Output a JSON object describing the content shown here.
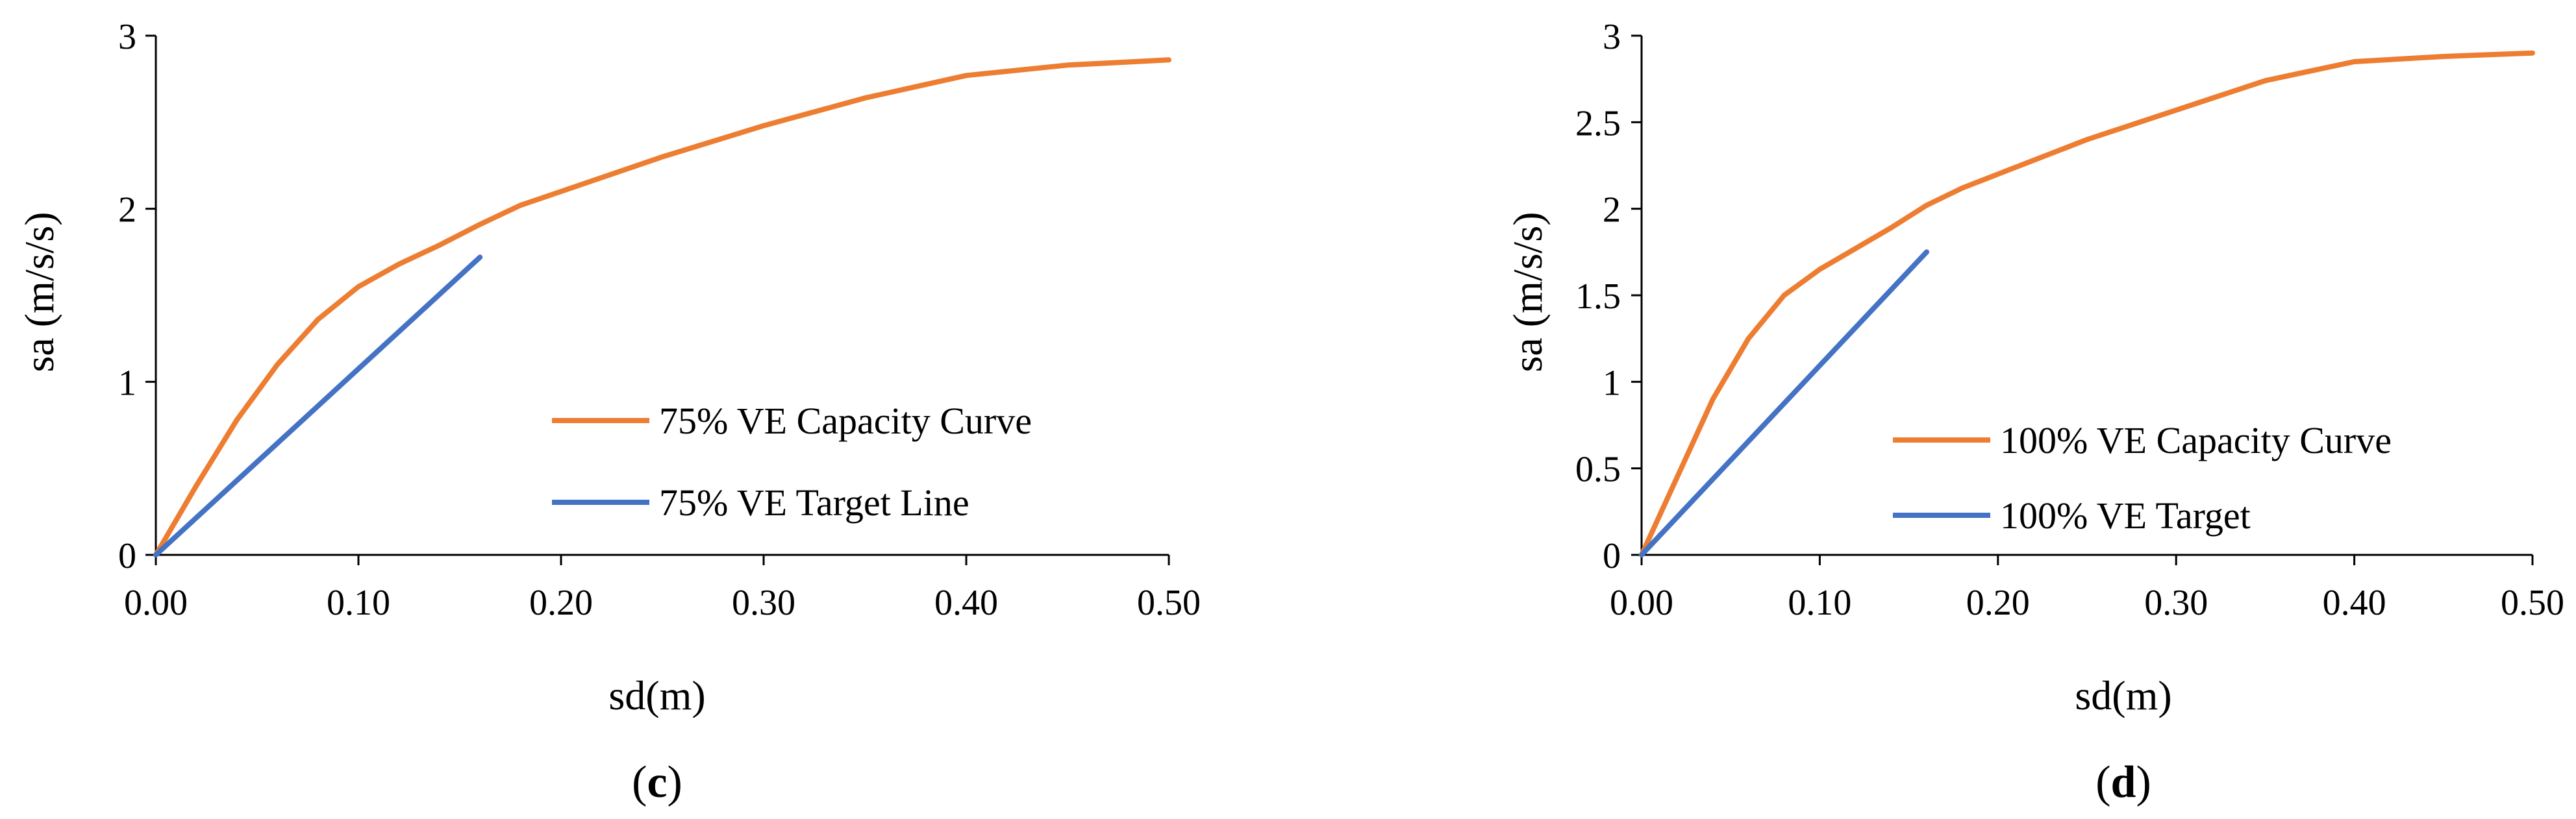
{
  "chart_data": [
    {
      "type": "line",
      "panel_label": "c",
      "xlabel": "sd(m)",
      "ylabel": "sa (m/s/s)",
      "xlim": [
        0,
        0.5
      ],
      "ylim": [
        0,
        3
      ],
      "xticks": [
        0,
        0.1,
        0.2,
        0.3,
        0.4,
        0.5
      ],
      "xtick_labels": [
        "0.00",
        "0.10",
        "0.20",
        "0.30",
        "0.40",
        "0.50"
      ],
      "yticks": [
        0,
        1,
        2,
        3
      ],
      "ytick_labels": [
        "0",
        "1",
        "2",
        "3"
      ],
      "legend_position": "center-right",
      "grid": false,
      "series": [
        {
          "name": "75% VE Capacity Curve",
          "color": "#ED7D31",
          "x": [
            0,
            0.02,
            0.04,
            0.06,
            0.08,
            0.1,
            0.12,
            0.14,
            0.16,
            0.18,
            0.2,
            0.25,
            0.3,
            0.35,
            0.4,
            0.45,
            0.5
          ],
          "y": [
            0,
            0.4,
            0.78,
            1.1,
            1.36,
            1.55,
            1.68,
            1.79,
            1.91,
            2.02,
            2.1,
            2.3,
            2.48,
            2.64,
            2.77,
            2.83,
            2.86
          ]
        },
        {
          "name": "75% VE Target Line",
          "color": "#4472C4",
          "x": [
            0,
            0.16
          ],
          "y": [
            0,
            1.72
          ]
        }
      ]
    },
    {
      "type": "line",
      "panel_label": "d",
      "xlabel": "sd(m)",
      "ylabel": "sa (m/s/s)",
      "xlim": [
        0,
        0.5
      ],
      "ylim": [
        0,
        3
      ],
      "xticks": [
        0,
        0.1,
        0.2,
        0.3,
        0.4,
        0.5
      ],
      "xtick_labels": [
        "0.00",
        "0.10",
        "0.20",
        "0.30",
        "0.40",
        "0.50"
      ],
      "yticks": [
        0,
        0.5,
        1,
        1.5,
        2,
        2.5,
        3
      ],
      "ytick_labels": [
        "0",
        "0.5",
        "1",
        "1.5",
        "2",
        "2.5",
        "3"
      ],
      "legend_position": "center-right",
      "grid": false,
      "series": [
        {
          "name": "100% VE Capacity Curve",
          "color": "#ED7D31",
          "x": [
            0,
            0.02,
            0.04,
            0.06,
            0.08,
            0.1,
            0.12,
            0.14,
            0.16,
            0.18,
            0.2,
            0.25,
            0.3,
            0.35,
            0.4,
            0.45,
            0.5
          ],
          "y": [
            0,
            0.45,
            0.9,
            1.25,
            1.5,
            1.65,
            1.77,
            1.89,
            2.02,
            2.12,
            2.2,
            2.4,
            2.57,
            2.74,
            2.85,
            2.88,
            2.9
          ]
        },
        {
          "name": "100% VE Target",
          "color": "#4472C4",
          "x": [
            0,
            0.16
          ],
          "y": [
            0,
            1.75
          ]
        }
      ]
    }
  ]
}
